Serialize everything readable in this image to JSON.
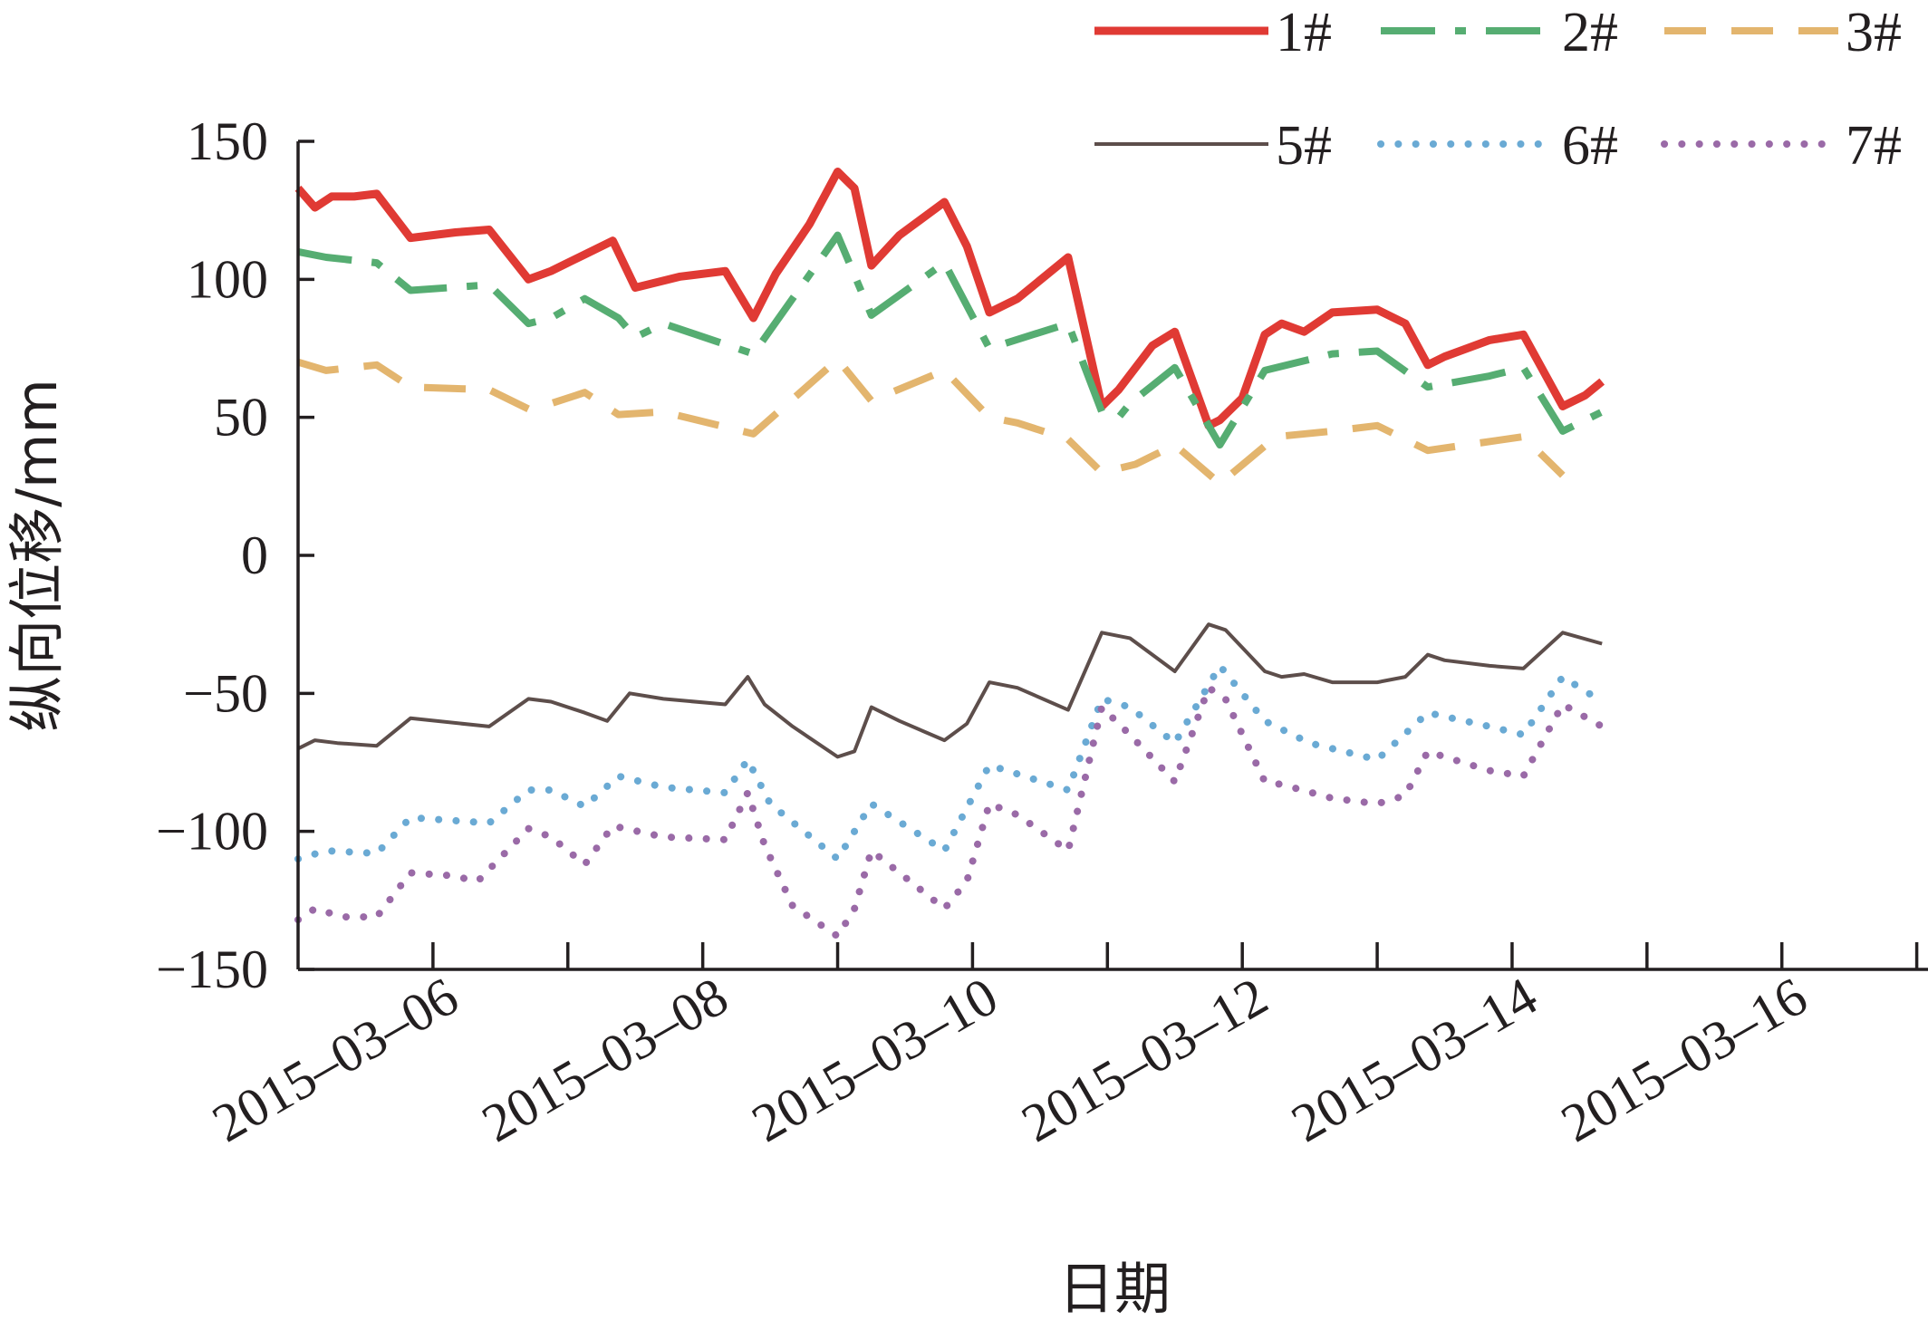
{
  "chart_data": {
    "type": "line",
    "title": "",
    "xlabel": "日期",
    "ylabel": "纵向位移/mm",
    "xlim": [
      "2015-03-05T00:00",
      "2015-03-17T02:00"
    ],
    "ylim": [
      -150,
      150
    ],
    "yticks": [
      150,
      100,
      50,
      0,
      -50,
      -100,
      -150
    ],
    "ytick_labels": [
      "150",
      "100",
      "50",
      "0",
      "−50",
      "−100",
      "−150"
    ],
    "xtick_dates": [
      "2015-03-06",
      "2015-03-07",
      "2015-03-08",
      "2015-03-09",
      "2015-03-10",
      "2015-03-11",
      "2015-03-12",
      "2015-03-13",
      "2015-03-14",
      "2015-03-15",
      "2015-03-16",
      "2015-03-17"
    ],
    "xtick_labels": [
      "2015–03–06",
      "2015–03–08",
      "2015–03–10",
      "2015–03–12",
      "2015–03–14",
      "2015–03–16"
    ],
    "xtick_label_dates": [
      "2015-03-06",
      "2015-03-08",
      "2015-03-10",
      "2015-03-12",
      "2015-03-14",
      "2015-03-16"
    ],
    "grid": false,
    "legend_position": "top-right",
    "series": [
      {
        "name": "1#",
        "color": "#e03a34",
        "style": "solid",
        "width": 9,
        "points": [
          [
            "2015-03-05T00:00",
            133
          ],
          [
            "2015-03-05T03:00",
            126
          ],
          [
            "2015-03-05T06:00",
            130
          ],
          [
            "2015-03-05T10:00",
            130
          ],
          [
            "2015-03-05T14:00",
            131
          ],
          [
            "2015-03-05T20:00",
            115
          ],
          [
            "2015-03-06T04:00",
            117
          ],
          [
            "2015-03-06T10:00",
            118
          ],
          [
            "2015-03-06T17:00",
            100
          ],
          [
            "2015-03-06T21:00",
            103
          ],
          [
            "2015-03-07T03:00",
            109
          ],
          [
            "2015-03-07T08:00",
            114
          ],
          [
            "2015-03-07T12:00",
            97
          ],
          [
            "2015-03-07T16:00",
            99
          ],
          [
            "2015-03-07T20:00",
            101
          ],
          [
            "2015-03-08T04:00",
            103
          ],
          [
            "2015-03-08T09:00",
            86
          ],
          [
            "2015-03-08T13:00",
            102
          ],
          [
            "2015-03-08T19:00",
            120
          ],
          [
            "2015-03-09T00:00",
            139
          ],
          [
            "2015-03-09T03:00",
            133
          ],
          [
            "2015-03-09T06:00",
            105
          ],
          [
            "2015-03-09T11:00",
            116
          ],
          [
            "2015-03-09T19:00",
            128
          ],
          [
            "2015-03-09T23:00",
            112
          ],
          [
            "2015-03-10T03:00",
            88
          ],
          [
            "2015-03-10T08:00",
            93
          ],
          [
            "2015-03-10T17:00",
            108
          ],
          [
            "2015-03-10T23:00",
            54
          ],
          [
            "2015-03-11T02:00",
            60
          ],
          [
            "2015-03-11T08:00",
            76
          ],
          [
            "2015-03-11T12:00",
            81
          ],
          [
            "2015-03-11T18:00",
            47
          ],
          [
            "2015-03-11T20:00",
            49
          ],
          [
            "2015-03-12T00:00",
            57
          ],
          [
            "2015-03-12T04:00",
            80
          ],
          [
            "2015-03-12T07:00",
            84
          ],
          [
            "2015-03-12T11:00",
            81
          ],
          [
            "2015-03-12T16:00",
            88
          ],
          [
            "2015-03-13T00:00",
            89
          ],
          [
            "2015-03-13T05:00",
            84
          ],
          [
            "2015-03-13T09:00",
            69
          ],
          [
            "2015-03-13T12:00",
            72
          ],
          [
            "2015-03-13T20:00",
            78
          ],
          [
            "2015-03-14T02:00",
            80
          ],
          [
            "2015-03-14T09:00",
            54
          ],
          [
            "2015-03-14T13:00",
            58
          ],
          [
            "2015-03-14T16:00",
            63
          ]
        ]
      },
      {
        "name": "2#",
        "color": "#56ad72",
        "style": "dashdot",
        "width": 8,
        "points": [
          [
            "2015-03-05T00:00",
            110
          ],
          [
            "2015-03-05T05:00",
            108
          ],
          [
            "2015-03-05T14:00",
            106
          ],
          [
            "2015-03-05T20:00",
            96
          ],
          [
            "2015-03-06T10:00",
            98
          ],
          [
            "2015-03-06T17:00",
            84
          ],
          [
            "2015-03-06T21:00",
            86
          ],
          [
            "2015-03-07T03:00",
            93
          ],
          [
            "2015-03-07T09:00",
            86
          ],
          [
            "2015-03-07T12:00",
            79
          ],
          [
            "2015-03-07T17:00",
            84
          ],
          [
            "2015-03-08T09:00",
            73
          ],
          [
            "2015-03-09T00:00",
            116
          ],
          [
            "2015-03-09T06:00",
            87
          ],
          [
            "2015-03-09T19:00",
            106
          ],
          [
            "2015-03-10T03:00",
            75
          ],
          [
            "2015-03-10T17:00",
            84
          ],
          [
            "2015-03-10T23:00",
            52
          ],
          [
            "2015-03-11T02:00",
            50
          ],
          [
            "2015-03-11T04:00",
            55
          ],
          [
            "2015-03-11T12:00",
            68
          ],
          [
            "2015-03-11T20:00",
            40
          ],
          [
            "2015-03-12T04:00",
            67
          ],
          [
            "2015-03-12T16:00",
            73
          ],
          [
            "2015-03-13T00:00",
            74
          ],
          [
            "2015-03-13T09:00",
            61
          ],
          [
            "2015-03-13T20:00",
            65
          ],
          [
            "2015-03-14T02:00",
            68
          ],
          [
            "2015-03-14T09:00",
            45
          ],
          [
            "2015-03-14T16:00",
            52
          ]
        ]
      },
      {
        "name": "3#",
        "color": "#e3b56e",
        "style": "dashed",
        "width": 8,
        "points": [
          [
            "2015-03-05T00:00",
            70
          ],
          [
            "2015-03-05T05:00",
            67
          ],
          [
            "2015-03-05T14:00",
            69
          ],
          [
            "2015-03-05T20:00",
            61
          ],
          [
            "2015-03-06T10:00",
            60
          ],
          [
            "2015-03-06T17:00",
            53
          ],
          [
            "2015-03-06T21:00",
            55
          ],
          [
            "2015-03-07T03:00",
            59
          ],
          [
            "2015-03-07T09:00",
            51
          ],
          [
            "2015-03-07T17:00",
            52
          ],
          [
            "2015-03-08T09:00",
            44
          ],
          [
            "2015-03-09T00:00",
            71
          ],
          [
            "2015-03-09T06:00",
            56
          ],
          [
            "2015-03-09T19:00",
            67
          ],
          [
            "2015-03-10T03:00",
            50
          ],
          [
            "2015-03-10T08:00",
            48
          ],
          [
            "2015-03-10T17:00",
            42
          ],
          [
            "2015-03-10T23:00",
            30
          ],
          [
            "2015-03-11T05:00",
            33
          ],
          [
            "2015-03-11T12:00",
            40
          ],
          [
            "2015-03-11T20:00",
            26
          ],
          [
            "2015-03-12T06:00",
            43
          ],
          [
            "2015-03-12T16:00",
            45
          ],
          [
            "2015-03-13T00:00",
            47
          ],
          [
            "2015-03-13T09:00",
            38
          ],
          [
            "2015-03-14T02:00",
            43
          ],
          [
            "2015-03-14T09:00",
            29
          ]
        ]
      },
      {
        "name": "5#",
        "color": "#5d4e4b",
        "style": "solid",
        "width": 4,
        "points": [
          [
            "2015-03-05T00:00",
            -70
          ],
          [
            "2015-03-05T03:00",
            -67
          ],
          [
            "2015-03-05T07:00",
            -68
          ],
          [
            "2015-03-05T14:00",
            -69
          ],
          [
            "2015-03-05T20:00",
            -59
          ],
          [
            "2015-03-06T10:00",
            -62
          ],
          [
            "2015-03-06T17:00",
            -52
          ],
          [
            "2015-03-06T21:00",
            -53
          ],
          [
            "2015-03-07T03:00",
            -57
          ],
          [
            "2015-03-07T07:00",
            -60
          ],
          [
            "2015-03-07T11:00",
            -50
          ],
          [
            "2015-03-07T17:00",
            -52
          ],
          [
            "2015-03-08T04:00",
            -54
          ],
          [
            "2015-03-08T08:00",
            -44
          ],
          [
            "2015-03-08T11:00",
            -54
          ],
          [
            "2015-03-08T16:00",
            -62
          ],
          [
            "2015-03-09T00:00",
            -73
          ],
          [
            "2015-03-09T03:00",
            -71
          ],
          [
            "2015-03-09T06:00",
            -55
          ],
          [
            "2015-03-09T11:00",
            -60
          ],
          [
            "2015-03-09T19:00",
            -67
          ],
          [
            "2015-03-09T23:00",
            -61
          ],
          [
            "2015-03-10T03:00",
            -46
          ],
          [
            "2015-03-10T08:00",
            -48
          ],
          [
            "2015-03-10T17:00",
            -56
          ],
          [
            "2015-03-10T23:00",
            -28
          ],
          [
            "2015-03-11T04:00",
            -30
          ],
          [
            "2015-03-11T12:00",
            -42
          ],
          [
            "2015-03-11T18:00",
            -25
          ],
          [
            "2015-03-11T21:00",
            -27
          ],
          [
            "2015-03-12T04:00",
            -42
          ],
          [
            "2015-03-12T07:00",
            -44
          ],
          [
            "2015-03-12T11:00",
            -43
          ],
          [
            "2015-03-12T16:00",
            -46
          ],
          [
            "2015-03-13T00:00",
            -46
          ],
          [
            "2015-03-13T05:00",
            -44
          ],
          [
            "2015-03-13T09:00",
            -36
          ],
          [
            "2015-03-13T12:00",
            -38
          ],
          [
            "2015-03-13T20:00",
            -40
          ],
          [
            "2015-03-14T02:00",
            -41
          ],
          [
            "2015-03-14T09:00",
            -28
          ],
          [
            "2015-03-14T16:00",
            -32
          ]
        ]
      },
      {
        "name": "6#",
        "color": "#6aaad4",
        "style": "dotted",
        "width": 8,
        "points": [
          [
            "2015-03-05T00:00",
            -110
          ],
          [
            "2015-03-05T05:00",
            -107
          ],
          [
            "2015-03-05T14:00",
            -108
          ],
          [
            "2015-03-05T20:00",
            -95
          ],
          [
            "2015-03-06T10:00",
            -97
          ],
          [
            "2015-03-06T17:00",
            -85
          ],
          [
            "2015-03-06T21:00",
            -85
          ],
          [
            "2015-03-07T03:00",
            -91
          ],
          [
            "2015-03-07T09:00",
            -80
          ],
          [
            "2015-03-07T17:00",
            -84
          ],
          [
            "2015-03-08T04:00",
            -86
          ],
          [
            "2015-03-08T08:00",
            -74
          ],
          [
            "2015-03-08T12:00",
            -90
          ],
          [
            "2015-03-09T00:00",
            -110
          ],
          [
            "2015-03-09T06:00",
            -90
          ],
          [
            "2015-03-09T19:00",
            -107
          ],
          [
            "2015-03-10T03:00",
            -76
          ],
          [
            "2015-03-10T17:00",
            -85
          ],
          [
            "2015-03-10T23:00",
            -52
          ],
          [
            "2015-03-11T04:00",
            -55
          ],
          [
            "2015-03-11T12:00",
            -68
          ],
          [
            "2015-03-11T20:00",
            -40
          ],
          [
            "2015-03-12T04:00",
            -60
          ],
          [
            "2015-03-12T12:00",
            -68
          ],
          [
            "2015-03-13T00:00",
            -74
          ],
          [
            "2015-03-13T09:00",
            -57
          ],
          [
            "2015-03-13T20:00",
            -62
          ],
          [
            "2015-03-14T02:00",
            -65
          ],
          [
            "2015-03-14T09:00",
            -44
          ],
          [
            "2015-03-14T16:00",
            -53
          ]
        ]
      },
      {
        "name": "7#",
        "color": "#9a6aa7",
        "style": "dotted",
        "width": 8,
        "points": [
          [
            "2015-03-05T00:00",
            -132
          ],
          [
            "2015-03-05T03:00",
            -128
          ],
          [
            "2015-03-05T08:00",
            -131
          ],
          [
            "2015-03-05T14:00",
            -131
          ],
          [
            "2015-03-05T20:00",
            -115
          ],
          [
            "2015-03-06T03:00",
            -116
          ],
          [
            "2015-03-06T08:00",
            -118
          ],
          [
            "2015-03-06T17:00",
            -99
          ],
          [
            "2015-03-06T21:00",
            -102
          ],
          [
            "2015-03-07T03:00",
            -112
          ],
          [
            "2015-03-07T08:00",
            -98
          ],
          [
            "2015-03-07T17:00",
            -102
          ],
          [
            "2015-03-08T04:00",
            -103
          ],
          [
            "2015-03-08T08:00",
            -86
          ],
          [
            "2015-03-08T11:00",
            -105
          ],
          [
            "2015-03-08T16:00",
            -127
          ],
          [
            "2015-03-09T00:00",
            -138
          ],
          [
            "2015-03-09T03:00",
            -128
          ],
          [
            "2015-03-09T06:00",
            -107
          ],
          [
            "2015-03-09T11:00",
            -115
          ],
          [
            "2015-03-09T19:00",
            -128
          ],
          [
            "2015-03-09T23:00",
            -118
          ],
          [
            "2015-03-10T03:00",
            -90
          ],
          [
            "2015-03-10T08:00",
            -94
          ],
          [
            "2015-03-10T17:00",
            -107
          ],
          [
            "2015-03-10T23:00",
            -55
          ],
          [
            "2015-03-11T04:00",
            -65
          ],
          [
            "2015-03-11T12:00",
            -82
          ],
          [
            "2015-03-11T18:00",
            -48
          ],
          [
            "2015-03-11T21:00",
            -52
          ],
          [
            "2015-03-12T04:00",
            -82
          ],
          [
            "2015-03-12T07:00",
            -83
          ],
          [
            "2015-03-12T16:00",
            -88
          ],
          [
            "2015-03-13T00:00",
            -90
          ],
          [
            "2015-03-13T05:00",
            -87
          ],
          [
            "2015-03-13T09:00",
            -71
          ],
          [
            "2015-03-13T12:00",
            -73
          ],
          [
            "2015-03-13T20:00",
            -78
          ],
          [
            "2015-03-14T02:00",
            -80
          ],
          [
            "2015-03-14T09:00",
            -54
          ],
          [
            "2015-03-14T16:00",
            -62
          ]
        ]
      }
    ]
  }
}
